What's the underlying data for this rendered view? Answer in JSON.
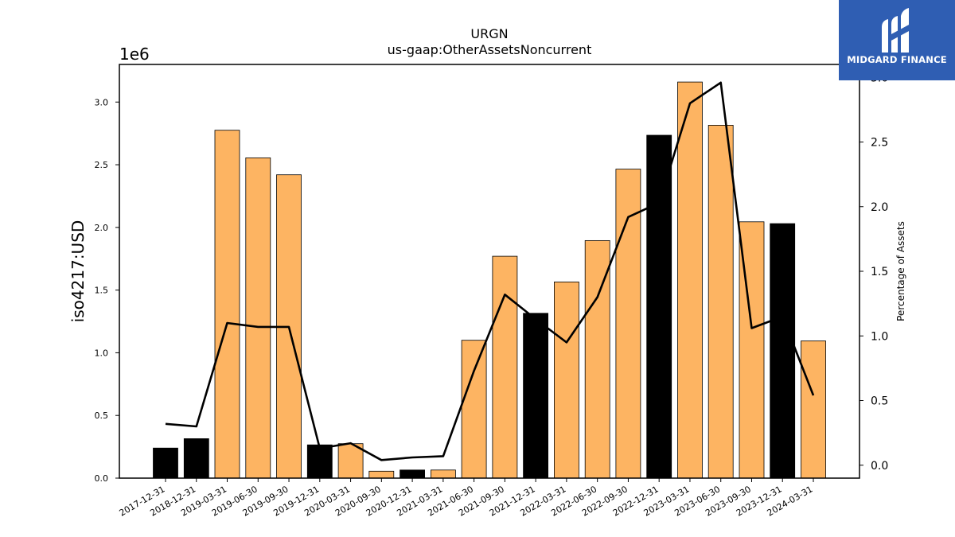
{
  "chart_data": {
    "type": "bar",
    "title": "URGN",
    "subtitle": "us-gaap:OtherAssetsNoncurrent",
    "ylabel": "iso4217:USD",
    "y_offset_label": "1e6",
    "y2label": "Percentage of Assets",
    "ylim": [
      0,
      3300000
    ],
    "y2lim": [
      -0.1,
      3.1
    ],
    "yticks": [
      0.0,
      0.5,
      1.0,
      1.5,
      2.0,
      2.5,
      3.0
    ],
    "y2ticks": [
      0.0,
      0.5,
      1.0,
      1.5,
      2.0,
      2.5,
      3.0
    ],
    "grid": false,
    "categories": [
      "2017-12-31",
      "2018-12-31",
      "2019-03-31",
      "2019-06-30",
      "2019-09-30",
      "2019-12-31",
      "2020-03-31",
      "2020-09-30",
      "2020-12-31",
      "2021-03-31",
      "2021-06-30",
      "2021-09-30",
      "2021-12-31",
      "2022-03-31",
      "2022-06-30",
      "2022-09-30",
      "2022-12-31",
      "2023-03-31",
      "2023-06-30",
      "2023-09-30",
      "2023-12-31",
      "2024-03-31"
    ],
    "series": [
      {
        "kind": "bar",
        "values": [
          240000,
          315000,
          2775000,
          2555000,
          2420000,
          265000,
          275000,
          55000,
          65000,
          65000,
          1100000,
          1770000,
          1315000,
          1565000,
          1895000,
          2465000,
          2735000,
          3160000,
          2815000,
          2045000,
          2030000,
          1095000
        ],
        "bar_colors": [
          "#000000",
          "#000000",
          "#fdb462",
          "#fdb462",
          "#fdb462",
          "#000000",
          "#fdb462",
          "#fdb462",
          "#000000",
          "#fdb462",
          "#fdb462",
          "#fdb462",
          "#000000",
          "#fdb462",
          "#fdb462",
          "#fdb462",
          "#000000",
          "#fdb462",
          "#fdb462",
          "#fdb462",
          "#000000",
          "#fdb462"
        ]
      },
      {
        "kind": "line",
        "axis": "secondary",
        "color": "#000000",
        "values": [
          0.32,
          0.3,
          1.1,
          1.07,
          1.07,
          0.13,
          0.17,
          0.04,
          0.06,
          0.07,
          0.73,
          1.32,
          1.13,
          0.95,
          1.3,
          1.92,
          2.03,
          2.8,
          2.96,
          1.06,
          1.15,
          0.54
        ]
      }
    ]
  },
  "logo": {
    "text": "MIDGARD FINANCE",
    "background": "#2f5eb3"
  }
}
